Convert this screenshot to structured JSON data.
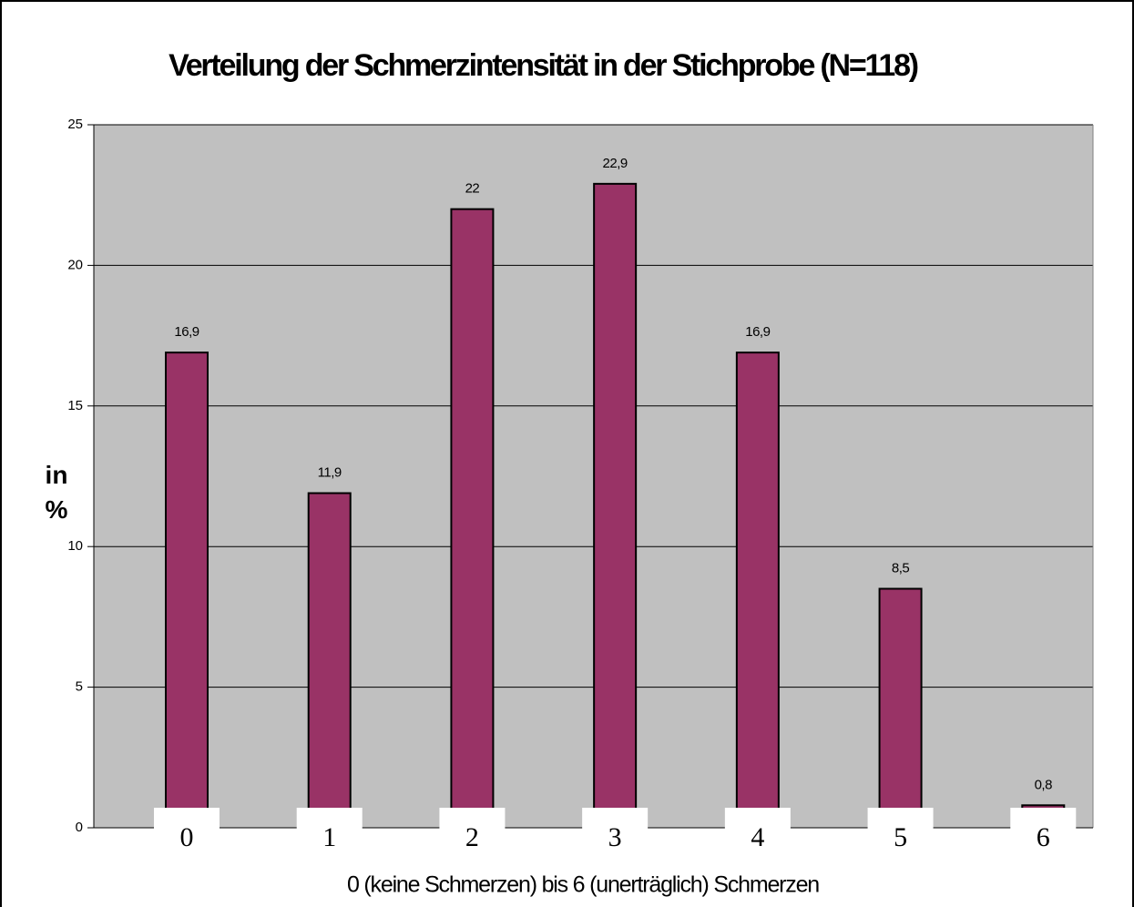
{
  "chart_data": {
    "type": "bar",
    "title": "Verteilung der Schmerzintensität  in der Stichprobe (N=118)",
    "y_label": "in %",
    "x_label": "0 (keine Schmerzen) bis 6 (unerträglich) Schmerzen",
    "categories": [
      "0",
      "1",
      "2",
      "3",
      "4",
      "5",
      "6"
    ],
    "values": [
      16.9,
      11.9,
      22,
      22.9,
      16.9,
      8.5,
      0.8
    ],
    "value_labels": [
      "16,9",
      "11,9",
      "22",
      "22,9",
      "16,9",
      "8,5",
      "0,8"
    ],
    "color": "#993366",
    "plot_background": "#c0c0c0",
    "ylim": [
      0,
      25
    ],
    "yticks": [
      0,
      5,
      10,
      15,
      20,
      25
    ],
    "grid": true
  }
}
